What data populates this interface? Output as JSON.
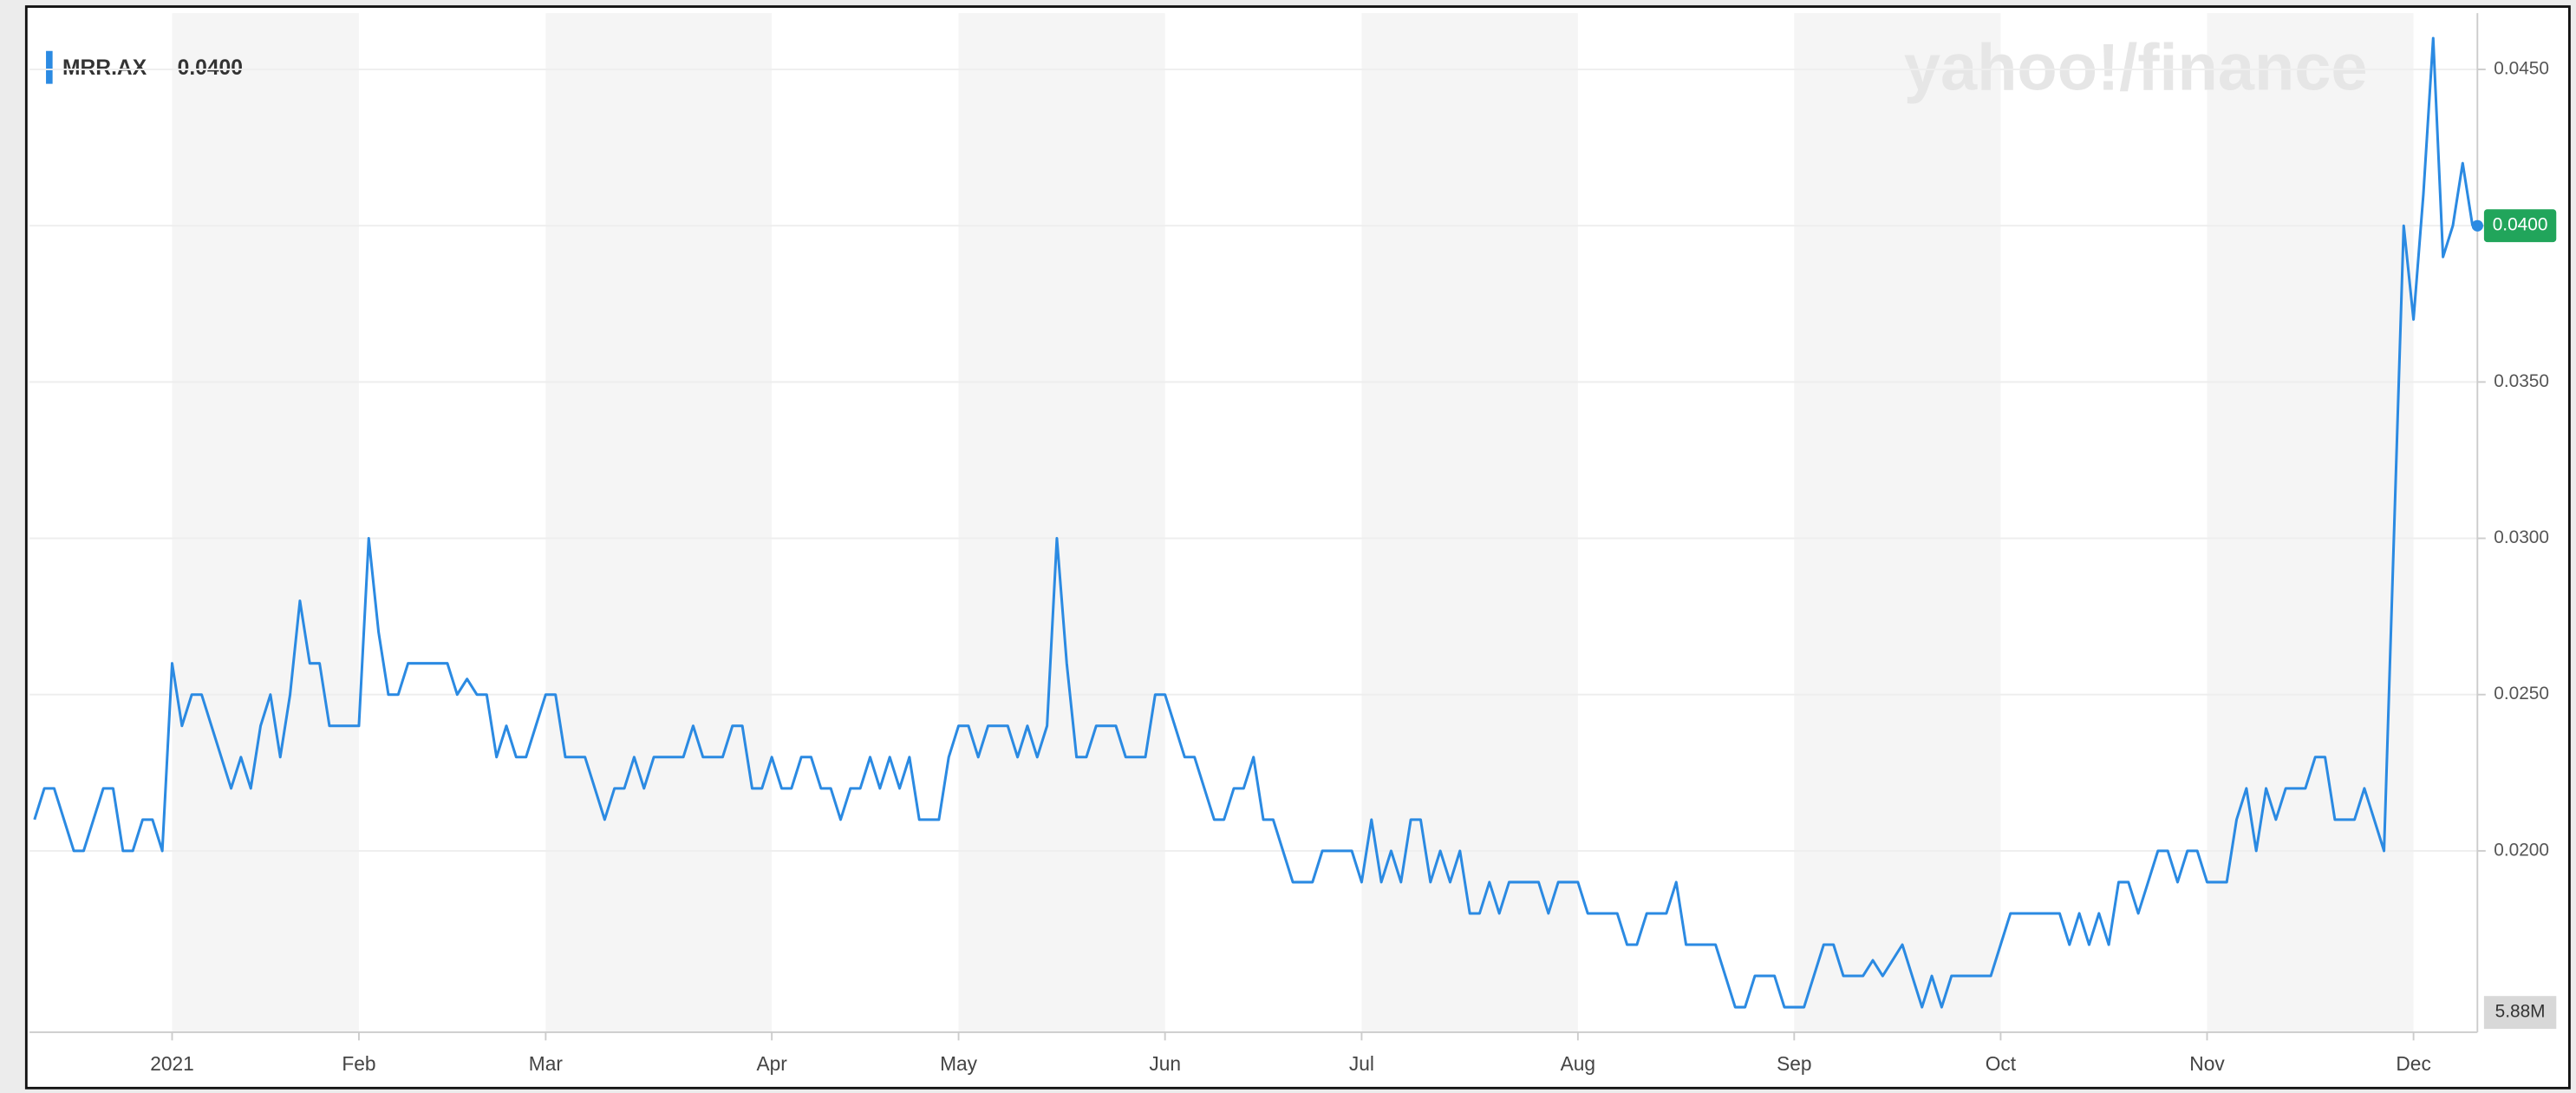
{
  "chart_data": {
    "type": "line",
    "watermark": "yahoo!/finance",
    "last_value_label": "0.0400",
    "volume_label": "5.88M",
    "categories": [
      null,
      null,
      null,
      null,
      null,
      null,
      null,
      null,
      null,
      null,
      null,
      null,
      null,
      null,
      "2021",
      null,
      null,
      null,
      null,
      null,
      null,
      null,
      null,
      null,
      null,
      null,
      null,
      null,
      null,
      null,
      null,
      null,
      null,
      "Feb",
      null,
      null,
      null,
      null,
      null,
      null,
      null,
      null,
      null,
      null,
      null,
      null,
      null,
      null,
      null,
      null,
      null,
      null,
      "Mar",
      null,
      null,
      null,
      null,
      null,
      null,
      null,
      null,
      null,
      null,
      null,
      null,
      null,
      null,
      null,
      null,
      null,
      null,
      null,
      null,
      null,
      null,
      "Apr",
      null,
      null,
      null,
      null,
      null,
      null,
      null,
      null,
      null,
      null,
      null,
      null,
      null,
      null,
      null,
      null,
      null,
      null,
      "May",
      null,
      null,
      null,
      null,
      null,
      null,
      null,
      null,
      null,
      null,
      null,
      null,
      null,
      null,
      null,
      null,
      null,
      null,
      null,
      null,
      "Jun",
      null,
      null,
      null,
      null,
      null,
      null,
      null,
      null,
      null,
      null,
      null,
      null,
      null,
      null,
      null,
      null,
      null,
      null,
      null,
      "Jul",
      null,
      null,
      null,
      null,
      null,
      null,
      null,
      null,
      null,
      null,
      null,
      null,
      null,
      null,
      null,
      null,
      null,
      null,
      null,
      null,
      null,
      "Aug",
      null,
      null,
      null,
      null,
      null,
      null,
      null,
      null,
      null,
      null,
      null,
      null,
      null,
      null,
      null,
      null,
      null,
      null,
      null,
      null,
      null,
      "Sep",
      null,
      null,
      null,
      null,
      null,
      null,
      null,
      null,
      null,
      null,
      null,
      null,
      null,
      null,
      null,
      null,
      null,
      null,
      null,
      null,
      "Oct",
      null,
      null,
      null,
      null,
      null,
      null,
      null,
      null,
      null,
      null,
      null,
      null,
      null,
      null,
      null,
      null,
      null,
      null,
      null,
      null,
      "Nov",
      null,
      null,
      null,
      null,
      null,
      null,
      null,
      null,
      null,
      null,
      null,
      null,
      null,
      null,
      null,
      null,
      null,
      null,
      null,
      null,
      "Dec",
      null,
      null,
      null,
      null,
      null,
      null
    ],
    "series": [
      {
        "name": "MRR.AX",
        "color": "#2b8ae2",
        "values": [
          0.021,
          0.022,
          0.022,
          0.021,
          0.02,
          0.02,
          0.021,
          0.022,
          0.022,
          0.02,
          0.02,
          0.021,
          0.021,
          0.02,
          0.026,
          0.024,
          0.025,
          0.025,
          0.024,
          0.023,
          0.022,
          0.023,
          0.022,
          0.024,
          0.025,
          0.023,
          0.025,
          0.028,
          0.026,
          0.026,
          0.024,
          0.024,
          0.024,
          0.024,
          0.03,
          0.027,
          0.025,
          0.025,
          0.026,
          0.026,
          0.026,
          0.026,
          0.026,
          0.025,
          0.0255,
          0.025,
          0.025,
          0.023,
          0.024,
          0.023,
          0.023,
          0.024,
          0.025,
          0.025,
          0.023,
          0.023,
          0.023,
          0.022,
          0.021,
          0.022,
          0.022,
          0.023,
          0.022,
          0.023,
          0.023,
          0.023,
          0.023,
          0.024,
          0.023,
          0.023,
          0.023,
          0.024,
          0.024,
          0.022,
          0.022,
          0.023,
          0.022,
          0.022,
          0.023,
          0.023,
          0.022,
          0.022,
          0.021,
          0.022,
          0.022,
          0.023,
          0.022,
          0.023,
          0.022,
          0.023,
          0.021,
          0.021,
          0.021,
          0.023,
          0.024,
          0.024,
          0.023,
          0.024,
          0.024,
          0.024,
          0.023,
          0.024,
          0.023,
          0.024,
          0.03,
          0.026,
          0.023,
          0.023,
          0.024,
          0.024,
          0.024,
          0.023,
          0.023,
          0.023,
          0.025,
          0.025,
          0.024,
          0.023,
          0.023,
          0.022,
          0.021,
          0.021,
          0.022,
          0.022,
          0.023,
          0.021,
          0.021,
          0.02,
          0.019,
          0.019,
          0.019,
          0.02,
          0.02,
          0.02,
          0.02,
          0.019,
          0.021,
          0.019,
          0.02,
          0.019,
          0.021,
          0.021,
          0.019,
          0.02,
          0.019,
          0.02,
          0.018,
          0.018,
          0.019,
          0.018,
          0.019,
          0.019,
          0.019,
          0.019,
          0.018,
          0.019,
          0.019,
          0.019,
          0.018,
          0.018,
          0.018,
          0.018,
          0.017,
          0.017,
          0.018,
          0.018,
          0.018,
          0.019,
          0.017,
          0.017,
          0.017,
          0.017,
          0.016,
          0.015,
          0.015,
          0.016,
          0.016,
          0.016,
          0.015,
          0.015,
          0.015,
          0.016,
          0.017,
          0.017,
          0.016,
          0.016,
          0.016,
          0.0165,
          0.016,
          0.0165,
          0.017,
          0.016,
          0.015,
          0.016,
          0.015,
          0.016,
          0.016,
          0.016,
          0.016,
          0.016,
          0.017,
          0.018,
          0.018,
          0.018,
          0.018,
          0.018,
          0.018,
          0.017,
          0.018,
          0.017,
          0.018,
          0.017,
          0.019,
          0.019,
          0.018,
          0.019,
          0.02,
          0.02,
          0.019,
          0.02,
          0.02,
          0.019,
          0.019,
          0.019,
          0.021,
          0.022,
          0.02,
          0.022,
          0.021,
          0.022,
          0.022,
          0.022,
          0.023,
          0.023,
          0.021,
          0.021,
          0.021,
          0.022,
          0.021,
          0.02,
          0.03,
          0.04,
          0.037,
          0.041,
          0.046,
          0.039,
          0.04,
          0.042,
          0.04
        ]
      }
    ],
    "ylim": [
      0.0142,
      0.0468
    ],
    "yticks": [
      {
        "value": 0.02,
        "label": "0.0200"
      },
      {
        "value": 0.025,
        "label": "0.0250"
      },
      {
        "value": 0.03,
        "label": "0.0300"
      },
      {
        "value": 0.035,
        "label": "0.0350"
      },
      {
        "value": 0.04,
        "label": "0.0400"
      },
      {
        "value": 0.045,
        "label": "0.0450"
      }
    ],
    "grid": true,
    "badge_color": "#21a55b"
  }
}
